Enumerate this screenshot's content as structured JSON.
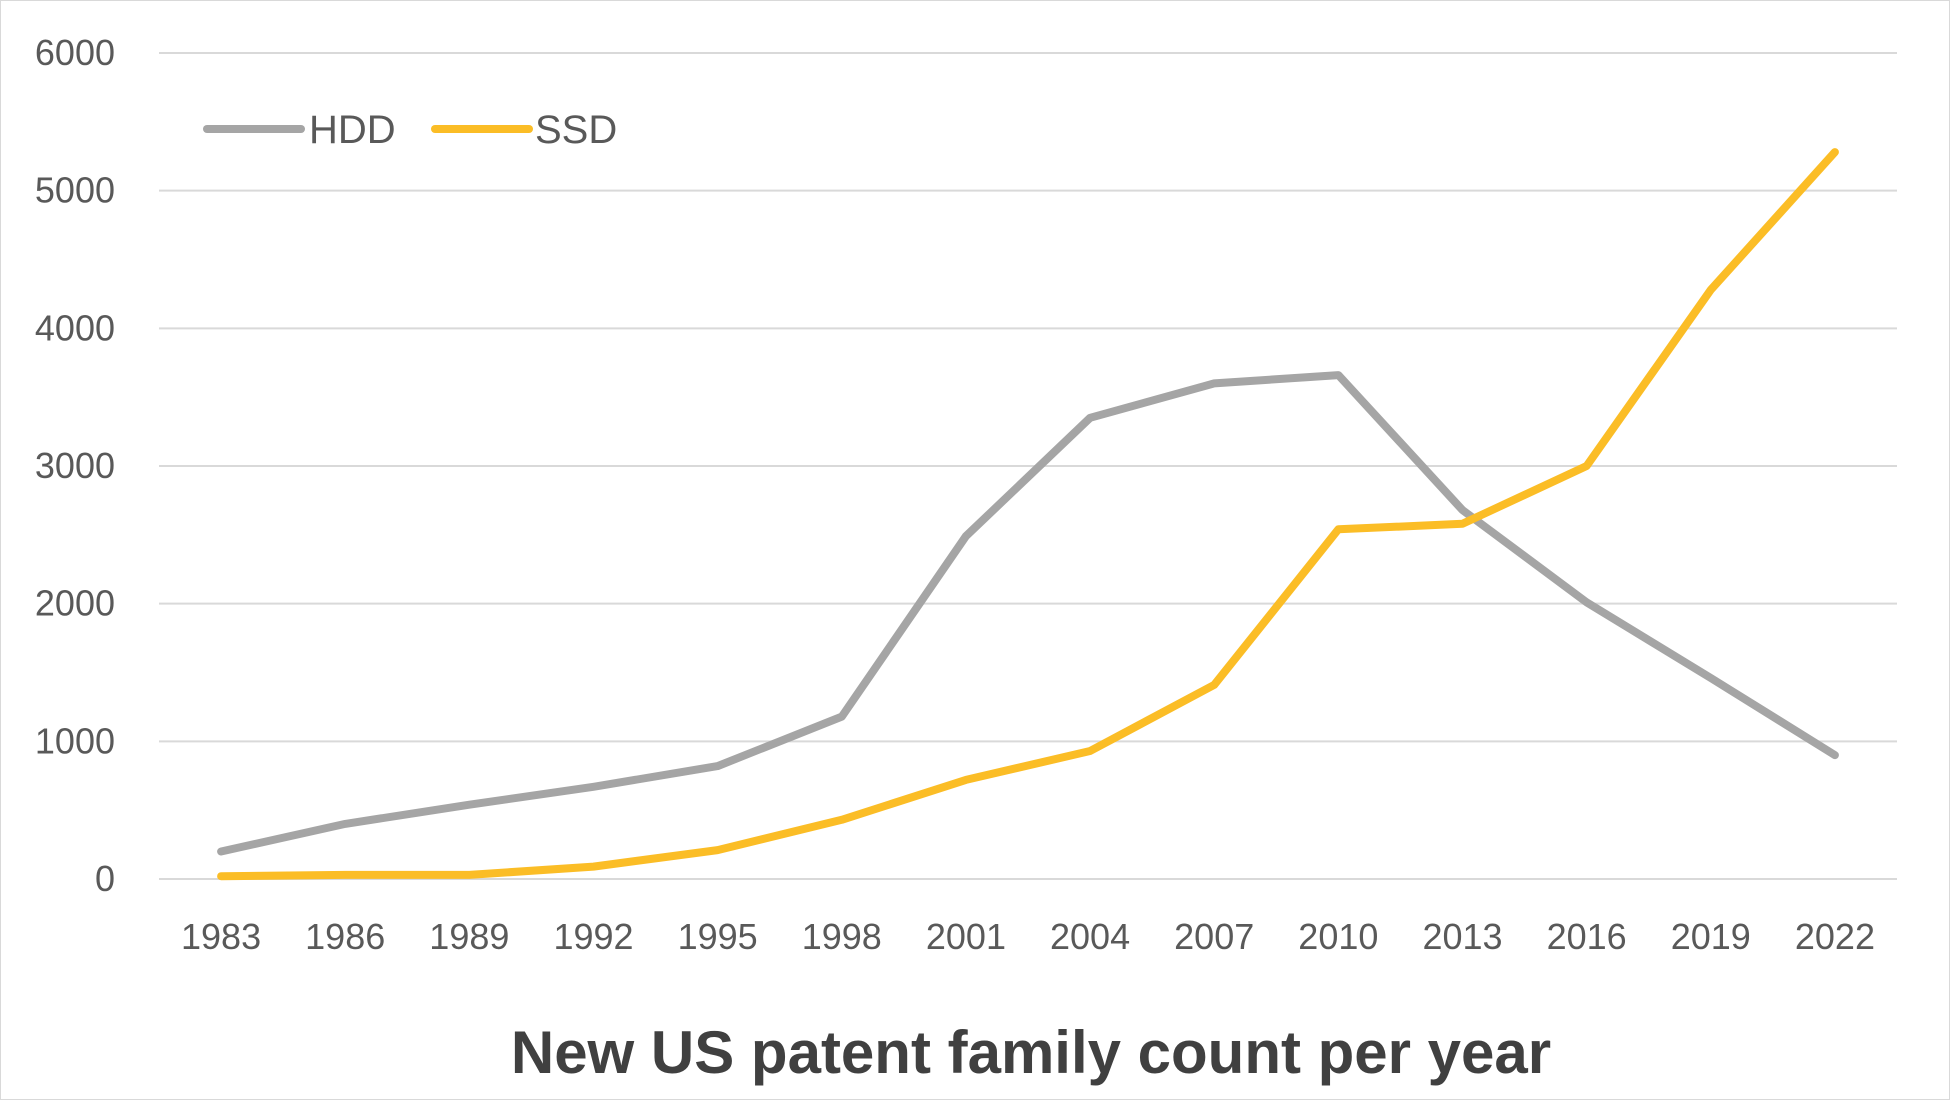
{
  "chart_data": {
    "type": "line",
    "title": "New US patent family count per year",
    "xlabel": "",
    "ylabel": "",
    "categories": [
      "1983",
      "1986",
      "1989",
      "1992",
      "1995",
      "1998",
      "2001",
      "2004",
      "2007",
      "2010",
      "2013",
      "2016",
      "2019",
      "2022"
    ],
    "ylim": [
      0,
      6000
    ],
    "yticks": [
      "0",
      "1000",
      "2000",
      "3000",
      "4000",
      "5000",
      "6000"
    ],
    "grid": true,
    "legend_position": "top-left",
    "series": [
      {
        "name": "HDD",
        "color": "#a5a5a5",
        "values": [
          200,
          400,
          540,
          670,
          820,
          1180,
          2490,
          3350,
          3600,
          3660,
          2680,
          2010,
          1460,
          900
        ]
      },
      {
        "name": "SSD",
        "color": "#fbbd26",
        "values": [
          20,
          30,
          30,
          90,
          210,
          430,
          720,
          930,
          1410,
          2540,
          2580,
          3000,
          4280,
          5280
        ]
      }
    ]
  }
}
